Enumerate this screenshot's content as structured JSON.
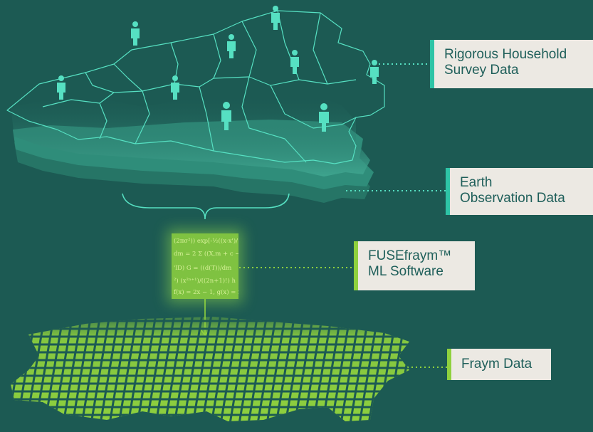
{
  "labels": {
    "survey": [
      "Rigorous Household",
      "Survey Data"
    ],
    "earth": [
      "Earth",
      "Observation Data"
    ],
    "fuse": [
      "FUSEfraym™",
      "ML Software"
    ],
    "fraym": [
      "Fraym Data"
    ]
  },
  "formula_lines": [
    "(2πσ²)) exp[-½((x-x')/",
    "dm = 2 Σ ((X,m + c −",
    "'lD)  G = ((d(T))/dm",
    "²) (x²ⁿ⁺¹)/((2n+1)!)  h",
    "f(x) = 2x − 1, g(x) = x"
  ],
  "colors": {
    "background": "#1c5a53",
    "map_top": "#3fa58f",
    "map_layer2": "#2f8d7a",
    "map_layer3": "#277868",
    "outline": "#56e0c2",
    "grid_green": "#8fd13e",
    "card_bg": "#ece9e3",
    "card_text": "#1f5f5a",
    "accent_teal": "#2ec4a6",
    "accent_green": "#8fd13e"
  },
  "icons": [
    "person-icon",
    "bracket-icon",
    "arrow-down-icon"
  ]
}
